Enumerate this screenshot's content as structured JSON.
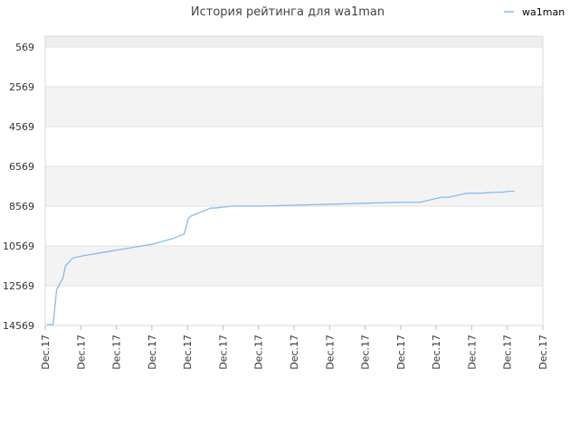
{
  "chart_data": {
    "type": "line",
    "title": "История рейтинга для wa1man",
    "legend_position": "top-right",
    "grid": true,
    "y_inverted": true,
    "ylim": [
      14569,
      569
    ],
    "y_ticks": [
      569,
      2569,
      4569,
      6569,
      8569,
      10569,
      12569,
      14569
    ],
    "x_tick_labels": [
      "Dec.17",
      "Dec.17",
      "Dec.17",
      "Dec.17",
      "Dec.17",
      "Dec.17",
      "Dec.17",
      "Dec.17",
      "Dec.17",
      "Dec.17",
      "Dec.17",
      "Dec.17",
      "Dec.17",
      "Dec.17",
      "Dec.17"
    ],
    "series": [
      {
        "name": "wa1man",
        "color": "#88bbee",
        "x": [
          0.0,
          0.17,
          0.27,
          0.45,
          0.52,
          0.73,
          1.0,
          1.5,
          2.0,
          2.5,
          3.0,
          3.5,
          3.86,
          3.98,
          4.05,
          4.6,
          4.7,
          5.2,
          6.0,
          7.0,
          8.0,
          9.0,
          10.0,
          10.5,
          11.1,
          11.3,
          11.8,
          12.2,
          12.6,
          12.8,
          13.0,
          13.15
        ],
        "y": [
          14569,
          14569,
          12769,
          12169,
          11569,
          11169,
          11069,
          10919,
          10769,
          10619,
          10469,
          10219,
          9969,
          9169,
          9069,
          8669,
          8669,
          8569,
          8569,
          8519,
          8469,
          8419,
          8369,
          8369,
          8119,
          8119,
          7919,
          7919,
          7869,
          7869,
          7819,
          7819
        ]
      }
    ]
  }
}
